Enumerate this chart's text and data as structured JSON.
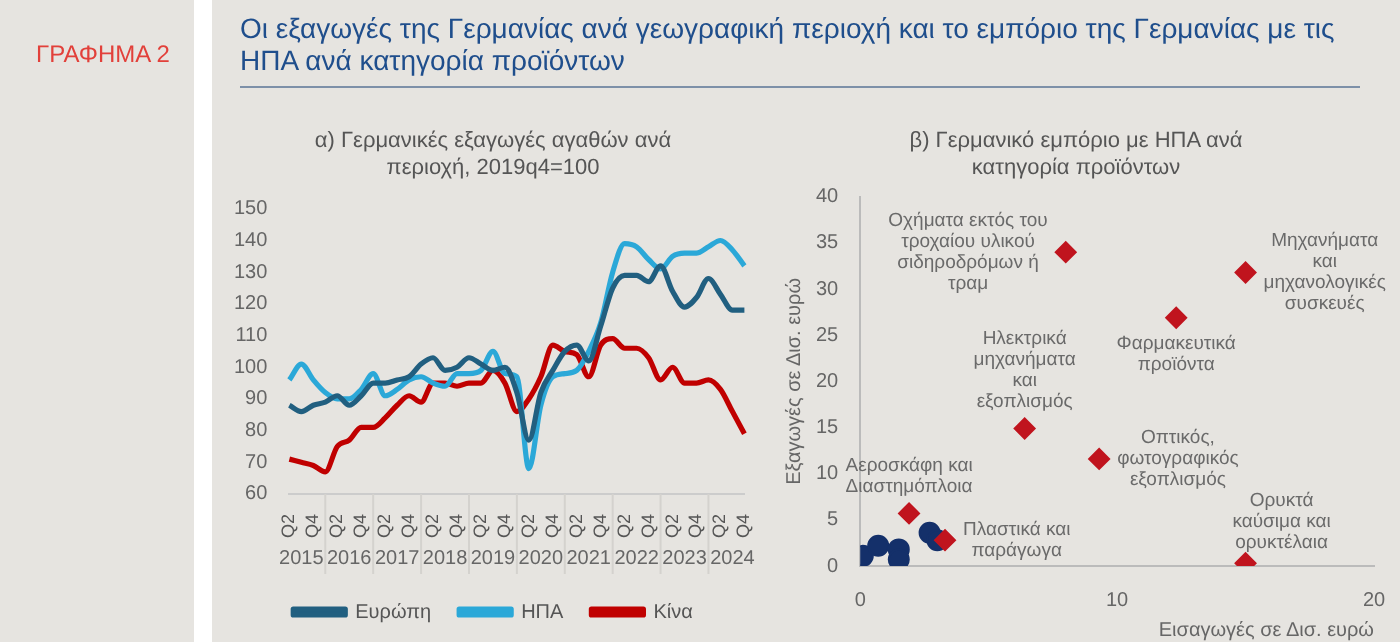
{
  "chart_data": [
    {
      "type": "other",
      "title": "Οι εξαγωγές της Γερμανίας ανά γεωγραφική περιοχή και το εμπόριο της Γερμανίας με τις ΗΠΑ ανά κατηγορία προϊόντων",
      "annotations": [
        "ΓΡΑΦΗΜΑ 2"
      ]
    },
    {
      "type": "line",
      "title": "α) Γερμανικές εξαγωγές αγαθών ανά περιοχή, 2019q4=100",
      "categories": [
        "Q2",
        null,
        "Q4",
        null,
        "Q2",
        null,
        "Q4",
        null,
        "Q2",
        null,
        "Q4",
        null,
        "Q2",
        null,
        "Q4",
        null,
        "Q2",
        null,
        "Q4",
        null,
        "Q2",
        null,
        "Q4",
        null,
        "Q2",
        null,
        "Q4",
        null,
        "Q2",
        null,
        "Q4",
        null,
        "Q2",
        null,
        "Q4",
        null,
        "Q2",
        null,
        "Q4"
      ],
      "annotations": [
        "2015",
        "2016",
        "2017",
        "2018",
        "2019",
        "2020",
        "2021",
        "2022",
        "2023",
        "2024"
      ],
      "series": [
        {
          "name": "Ευρώπη",
          "color": "#215f80",
          "values": [
            88,
            86,
            88,
            89,
            91,
            88,
            91,
            95,
            95,
            96,
            97,
            101,
            103,
            99,
            100,
            103,
            101,
            99,
            100,
            92,
            77,
            92,
            99,
            105,
            107,
            102,
            113,
            125,
            129,
            129,
            127,
            132,
            124,
            119,
            122,
            128,
            123,
            118,
            118
          ]
        },
        {
          "name": "ΗΠΑ",
          "color": "#2ba8d8",
          "values": [
            96,
            101,
            96,
            92,
            90,
            90,
            93,
            98,
            91,
            93,
            96,
            97,
            95,
            94,
            98,
            98,
            99,
            105,
            98,
            97,
            68,
            88,
            97,
            98,
            99,
            105,
            114,
            130,
            139,
            138,
            134,
            131,
            135,
            136,
            136,
            138,
            140,
            137,
            132
          ]
        },
        {
          "name": "Κίνα",
          "color": "#c00000",
          "values": [
            71,
            70,
            69,
            67,
            75,
            77,
            81,
            81,
            84,
            88,
            91,
            89,
            95,
            95,
            94,
            95,
            95,
            99,
            95,
            86,
            90,
            97,
            107,
            105,
            104,
            97,
            107,
            109,
            106,
            106,
            103,
            96,
            100,
            95,
            95,
            96,
            93,
            86,
            79
          ]
        }
      ],
      "ylim": [
        60,
        150
      ],
      "yticks": [
        60,
        70,
        80,
        90,
        100,
        110,
        120,
        130,
        140,
        150
      ],
      "legend": "bottom",
      "marker": "none"
    },
    {
      "type": "scatter",
      "title": "β) Γερμανικό εμπόριο με ΗΠΑ ανά κατηγορία προϊόντων",
      "xlabel": "Εισαγωγές σε Δισ. ευρώ",
      "ylabel": "Εξαγωγές σε Δισ. ευρώ",
      "series": [
        {
          "color": "#c0141e",
          "marker": "diamond",
          "x": [
            8.0,
            15.0,
            12.3,
            6.4,
            9.3,
            1.9,
            3.3,
            15.0
          ],
          "values": [
            34.0,
            31.8,
            26.9,
            14.9,
            11.6,
            5.7,
            2.8,
            0.3
          ]
        },
        {
          "color": "#14306a",
          "marker": "circle",
          "x": [
            0.1,
            0.7,
            1.5,
            1.5,
            2.7,
            3.0
          ],
          "values": [
            1.1,
            2.2,
            1.8,
            0.7,
            3.6,
            2.8
          ]
        }
      ],
      "annotations": [
        {
          "text": "Οχήματα εκτός του τροχαίου υλικού σιδηροδρόμων ή τραμ",
          "x": 8.0,
          "y": 34.0
        },
        {
          "text": "Μηχανήματα και μηχανολογικές συσκευές",
          "x": 15.0,
          "y": 31.8
        },
        {
          "text": "Φαρμακευτικά προϊόντα",
          "x": 12.3,
          "y": 26.9
        },
        {
          "text": "Ηλεκτρικά μηχανήματα και εξοπλισμός",
          "x": 6.4,
          "y": 14.9
        },
        {
          "text": "Οπτικός, φωτογραφικός εξοπλισμός",
          "x": 9.3,
          "y": 11.6
        },
        {
          "text": "Αεροσκάφη και Διαστημόπλοια",
          "x": 1.9,
          "y": 5.7
        },
        {
          "text": "Πλαστικά και παράγωγα",
          "x": 3.3,
          "y": 2.8
        },
        {
          "text": "Ορυκτά καύσιμα και ορυκτέλαια",
          "x": 15.0,
          "y": 0.3
        }
      ],
      "xlim": [
        0,
        20
      ],
      "xticks": [
        0,
        10,
        20
      ],
      "ylim": [
        0,
        40
      ],
      "yticks": [
        0,
        5,
        10,
        15,
        20,
        25,
        30,
        35,
        40
      ],
      "legend": false
    }
  ]
}
